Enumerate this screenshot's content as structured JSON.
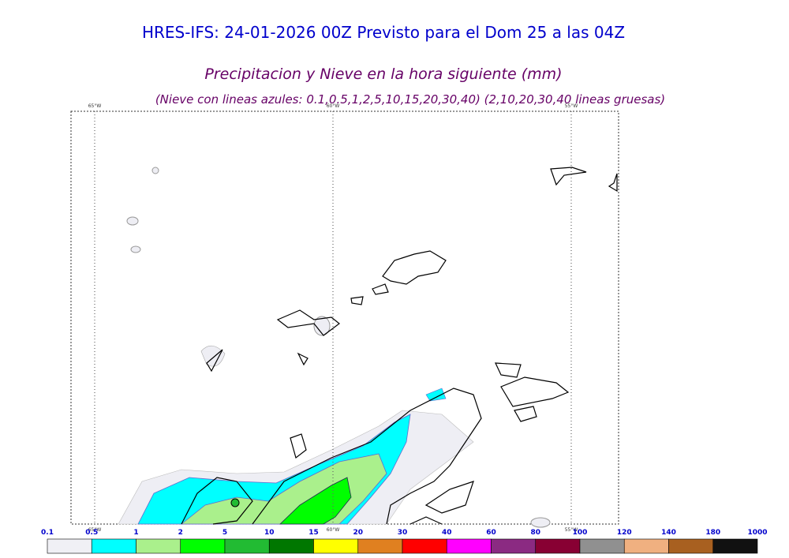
{
  "header": {
    "title": "HRES-IFS: 24-01-2026 00Z Previsto para el Dom 25 a las 04Z",
    "subtitle": "Precipitacion y Nieve en la hora siguiente (mm)",
    "note": "(Nieve con lineas azules: 0.1,0.5,1,2,5,10,15,20,30,40)  (2,10,20,30,40 lineas gruesas)"
  },
  "map": {
    "meridians": [
      "65°W",
      "60°W",
      "55°W"
    ]
  },
  "colorbar": {
    "labels": [
      "0.1",
      "0.5",
      "1",
      "2",
      "5",
      "10",
      "15",
      "20",
      "30",
      "40",
      "60",
      "80",
      "100",
      "120",
      "140",
      "180",
      "1000"
    ],
    "colors": [
      "#f0f0f5",
      "#00ffff",
      "#aaf08c",
      "#00ff00",
      "#22bb33",
      "#007700",
      "#ffff00",
      "#e08020",
      "#ff0000",
      "#ff00ff",
      "#8b2a82",
      "#880033",
      "#909090",
      "#f0b080",
      "#a86020",
      "#111111"
    ]
  }
}
